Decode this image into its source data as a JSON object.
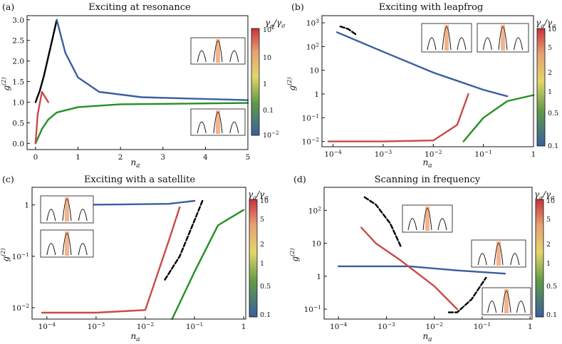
{
  "chart_data": [
    {
      "panel": "(a)",
      "title": "Exciting at resonance",
      "type": "line",
      "xlabel": "n_a",
      "ylabel": "g^(2)",
      "xscale": "linear",
      "yscale": "linear",
      "xlim": [
        -0.2,
        5
      ],
      "ylim": [
        -0.15,
        3.1
      ],
      "xticks": [
        "0",
        "1",
        "2",
        "3",
        "4",
        "5"
      ],
      "yticks": [
        "0.0",
        "0.5",
        "1.0",
        "1.5",
        "2.0",
        "2.5",
        "3.0"
      ],
      "colorbar": {
        "label": "γ_a/γ_σ",
        "ticks": [
          "10^2",
          "10",
          "1",
          "0.1",
          "10^-2"
        ]
      },
      "insets": 2,
      "series": [
        {
          "color": "#000000",
          "x": [
            0.0,
            0.1,
            0.2,
            0.3,
            0.4,
            0.5
          ],
          "y": [
            1.0,
            1.28,
            1.65,
            2.1,
            2.55,
            3.0
          ]
        },
        {
          "color": "#3b5ea0",
          "x": [
            0.5,
            0.7,
            1.0,
            1.5,
            2.5,
            5.0
          ],
          "y": [
            3.0,
            2.2,
            1.6,
            1.25,
            1.12,
            1.05
          ]
        },
        {
          "color": "#239023",
          "x": [
            0.0,
            0.15,
            0.3,
            0.5,
            1.0,
            2.0,
            5.0
          ],
          "y": [
            0.0,
            0.35,
            0.58,
            0.75,
            0.88,
            0.95,
            0.98
          ]
        },
        {
          "color": "#c84a4a",
          "x": [
            0.0,
            0.05,
            0.15,
            0.3
          ],
          "y": [
            0.0,
            0.7,
            1.25,
            1.0
          ]
        }
      ]
    },
    {
      "panel": "(b)",
      "title": "Exciting with leapfrog",
      "type": "line",
      "xlabel": "n_a",
      "ylabel": "g^(2)",
      "xscale": "log",
      "yscale": "log",
      "xlim": [
        6e-05,
        1
      ],
      "ylim": [
        0.006,
        2000
      ],
      "xticks": [
        "10^-4",
        "10^-3",
        "10^-2",
        "10^-1",
        "1"
      ],
      "yticks": [
        "10^-2",
        "10^-1",
        "1",
        "10",
        "10^2",
        "10^3"
      ],
      "colorbar": {
        "label": "γ_a/γ_σ",
        "ticks": [
          "10",
          "5",
          "2",
          "1",
          "0.5",
          "0.1"
        ]
      },
      "insets": 2,
      "series": [
        {
          "color": "#000000",
          "x": [
            0.00014,
            0.0002,
            0.0003
          ],
          "y": [
            700,
            550,
            300
          ]
        },
        {
          "color": "#3b5ea0",
          "x": [
            0.00012,
            0.001,
            0.01,
            0.1,
            0.3
          ],
          "y": [
            400,
            60,
            8,
            1.5,
            0.8
          ]
        },
        {
          "color": "#c84a4a",
          "x": [
            8e-05,
            0.001,
            0.01,
            0.03,
            0.05
          ],
          "y": [
            0.01,
            0.01,
            0.011,
            0.05,
            1
          ]
        },
        {
          "color": "#239023",
          "x": [
            0.04,
            0.1,
            0.3,
            1.0
          ],
          "y": [
            0.01,
            0.1,
            0.5,
            0.9
          ]
        }
      ]
    },
    {
      "panel": "(c)",
      "title": "Exciting with a satellite",
      "type": "line",
      "xlabel": "n_a",
      "ylabel": "g^(2)",
      "xscale": "log",
      "yscale": "log",
      "xlim": [
        5e-05,
        1.1
      ],
      "ylim": [
        0.006,
        2.2
      ],
      "xticks": [
        "10^-4",
        "10^-3",
        "10^-2",
        "10^-1",
        "1"
      ],
      "yticks": [
        "10^-2",
        "10^-1",
        "1"
      ],
      "colorbar": {
        "label": "γ_a/γ_σ",
        "ticks": [
          "10",
          "5",
          "2",
          "1",
          "0.5",
          "0.1"
        ]
      },
      "insets": 2,
      "series": [
        {
          "color": "#000000",
          "x": [
            0.025,
            0.05,
            0.1,
            0.15
          ],
          "y": [
            0.035,
            0.1,
            0.5,
            1.3
          ]
        },
        {
          "color": "#3b5ea0",
          "x": [
            0.0003,
            0.003,
            0.03,
            0.1
          ],
          "y": [
            1.0,
            1.02,
            1.05,
            1.2
          ]
        },
        {
          "color": "#c84a4a",
          "x": [
            8e-05,
            0.001,
            0.01,
            0.03,
            0.05
          ],
          "y": [
            0.008,
            0.008,
            0.009,
            0.2,
            0.9
          ]
        },
        {
          "color": "#239023",
          "x": [
            0.035,
            0.1,
            0.3,
            1.0
          ],
          "y": [
            0.006,
            0.05,
            0.4,
            0.8
          ]
        }
      ]
    },
    {
      "panel": "(d)",
      "title": "Scanning in frequency",
      "type": "line",
      "xlabel": "n_a",
      "ylabel": "g^(2)",
      "xscale": "log",
      "yscale": "log",
      "xlim": [
        5e-05,
        1.1
      ],
      "ylim": [
        0.05,
        500
      ],
      "xticks": [
        "10^-4",
        "10^-3",
        "10^-2",
        "10^-1",
        "1"
      ],
      "yticks": [
        "10^-1",
        "1",
        "10",
        "10^2"
      ],
      "colorbar": {
        "label": "γ_a/γ_σ",
        "ticks": [
          "10",
          "5",
          "2",
          "1",
          "0.5",
          "0.1"
        ]
      },
      "insets": 3,
      "series": [
        {
          "color": "#000000",
          "x": [
            0.00035,
            0.0006,
            0.0012,
            0.002
          ],
          "y": [
            250,
            150,
            40,
            8
          ]
        },
        {
          "color": "#3b5ea0",
          "x": [
            0.0001,
            0.0003,
            0.003,
            0.03,
            0.3
          ],
          "y": [
            2.0,
            2.0,
            2.0,
            1.5,
            1.2
          ]
        },
        {
          "color": "#c84a4a",
          "x": [
            0.0003,
            0.0006,
            0.002,
            0.01,
            0.03
          ],
          "y": [
            30,
            10,
            3,
            0.5,
            0.1
          ]
        },
        {
          "color": "#000000",
          "x": [
            0.02,
            0.03,
            0.06,
            0.12
          ],
          "y": [
            0.08,
            0.08,
            0.2,
            0.9
          ]
        }
      ]
    }
  ]
}
